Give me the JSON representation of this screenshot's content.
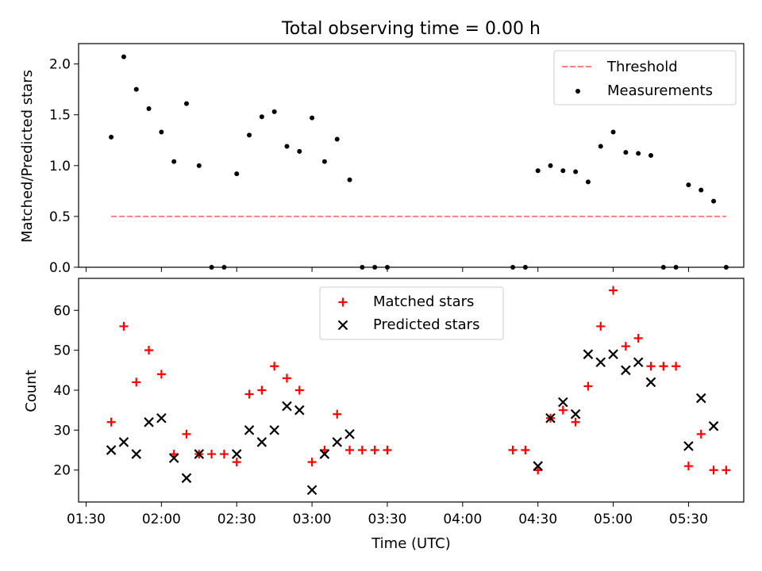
{
  "title": "Total observing time = 0.00 h",
  "chart_data": [
    {
      "type": "scatter",
      "ylabel": "Matched/Predicted stars",
      "ylim": [
        0,
        2.2
      ],
      "yticks": [
        "0.0",
        "0.5",
        "1.0",
        "1.5",
        "2.0"
      ],
      "xlim": [
        "01:27",
        "05:52"
      ],
      "legend_position": "upper right",
      "threshold": {
        "name": "Threshold",
        "value": 0.5,
        "x_start": "01:40",
        "x_end": "05:45",
        "color": "#ff7f7f"
      },
      "series": [
        {
          "name": "Measurements",
          "color": "#000000",
          "x": [
            "01:40",
            "01:45",
            "01:50",
            "01:55",
            "02:00",
            "02:05",
            "02:10",
            "02:15",
            "02:20",
            "02:25",
            "02:30",
            "02:35",
            "02:40",
            "02:45",
            "02:50",
            "02:55",
            "03:00",
            "03:05",
            "03:10",
            "03:15",
            "03:20",
            "03:25",
            "03:30",
            "04:20",
            "04:25",
            "04:30",
            "04:35",
            "04:40",
            "04:45",
            "04:50",
            "04:55",
            "05:00",
            "05:05",
            "05:10",
            "05:15",
            "05:20",
            "05:25",
            "05:30",
            "05:35",
            "05:40",
            "05:45"
          ],
          "y": [
            1.28,
            2.07,
            1.75,
            1.56,
            1.33,
            1.04,
            1.61,
            1.0,
            0.0,
            0.0,
            0.92,
            1.3,
            1.48,
            1.53,
            1.19,
            1.14,
            1.47,
            1.04,
            1.26,
            0.86,
            0.0,
            0.0,
            0.0,
            0.0,
            0.0,
            0.95,
            1.0,
            0.95,
            0.94,
            0.84,
            1.19,
            1.33,
            1.13,
            1.12,
            1.1,
            0.0,
            0.0,
            0.81,
            0.76,
            0.65,
            0.0
          ]
        }
      ]
    },
    {
      "type": "scatter",
      "xlabel": "Time (UTC)",
      "ylabel": "Count",
      "ylim": [
        12,
        68
      ],
      "yticks": [
        "20",
        "30",
        "40",
        "50",
        "60"
      ],
      "xlim": [
        "01:27",
        "05:52"
      ],
      "xticks": [
        "01:30",
        "02:00",
        "02:30",
        "03:00",
        "03:30",
        "04:00",
        "04:30",
        "05:00",
        "05:30"
      ],
      "legend_position": "upper center",
      "series": [
        {
          "name": "Matched stars",
          "marker": "+",
          "color": "#ff0000",
          "x": [
            "01:40",
            "01:45",
            "01:50",
            "01:55",
            "02:00",
            "02:05",
            "02:10",
            "02:15",
            "02:20",
            "02:25",
            "02:30",
            "02:35",
            "02:40",
            "02:45",
            "02:50",
            "02:55",
            "03:00",
            "03:05",
            "03:10",
            "03:15",
            "03:20",
            "03:25",
            "03:30",
            "04:20",
            "04:25",
            "04:30",
            "04:35",
            "04:40",
            "04:45",
            "04:50",
            "04:55",
            "05:00",
            "05:05",
            "05:10",
            "05:15",
            "05:20",
            "05:25",
            "05:30",
            "05:35",
            "05:40",
            "05:45"
          ],
          "y": [
            32,
            56,
            42,
            50,
            44,
            24,
            29,
            24,
            24,
            24,
            22,
            39,
            40,
            46,
            43,
            40,
            22,
            25,
            34,
            25,
            25,
            25,
            25,
            25,
            25,
            20,
            33,
            35,
            32,
            41,
            56,
            65,
            51,
            53,
            46,
            46,
            46,
            21,
            29,
            20,
            20
          ]
        },
        {
          "name": "Predicted stars",
          "marker": "x",
          "color": "#000000",
          "x": [
            "01:40",
            "01:45",
            "01:50",
            "01:55",
            "02:00",
            "02:05",
            "02:10",
            "02:15",
            "02:30",
            "02:35",
            "02:40",
            "02:45",
            "02:50",
            "02:55",
            "03:00",
            "03:05",
            "03:10",
            "03:15",
            "04:30",
            "04:35",
            "04:40",
            "04:45",
            "04:50",
            "04:55",
            "05:00",
            "05:05",
            "05:10",
            "05:15",
            "05:30",
            "05:35",
            "05:40"
          ],
          "y": [
            25,
            27,
            24,
            32,
            33,
            23,
            18,
            24,
            24,
            30,
            27,
            30,
            36,
            35,
            15,
            24,
            27,
            29,
            21,
            33,
            37,
            34,
            49,
            47,
            49,
            45,
            47,
            42,
            26,
            38,
            31
          ]
        }
      ]
    }
  ]
}
